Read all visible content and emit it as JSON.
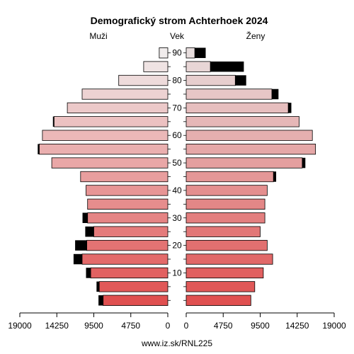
{
  "footer": "www.iz.sk/RNL225",
  "chart_data": {
    "type": "bar",
    "subtype": "population-pyramid",
    "title": "Demografický strom Achterhoek 2024",
    "left_label": "Muži",
    "center_label": "Vek",
    "right_label": "Ženy",
    "xlim": [
      0,
      19000
    ],
    "x_ticks": [
      {
        "value": 19000,
        "label": "19000"
      },
      {
        "value": 14250,
        "label": "14250"
      },
      {
        "value": 9500,
        "label": "9500"
      },
      {
        "value": 4750,
        "label": "4750"
      },
      {
        "value": 0,
        "label": "0"
      }
    ],
    "age_ticks": [
      {
        "age": 10,
        "label": "10"
      },
      {
        "age": 20,
        "label": "20"
      },
      {
        "age": 30,
        "label": "30"
      },
      {
        "age": 40,
        "label": "40"
      },
      {
        "age": 50,
        "label": "50"
      },
      {
        "age": 60,
        "label": "60"
      },
      {
        "age": 70,
        "label": "70"
      },
      {
        "age": 80,
        "label": "80"
      },
      {
        "age": 90,
        "label": "90"
      }
    ],
    "age_groups": [
      "0-4",
      "5-9",
      "10-14",
      "15-19",
      "20-24",
      "25-29",
      "30-34",
      "35-39",
      "40-44",
      "45-49",
      "50-54",
      "55-59",
      "60-64",
      "65-69",
      "70-74",
      "75-79",
      "80-84",
      "85-89",
      "90+"
    ],
    "men": {
      "base": [
        8300,
        8800,
        9900,
        11000,
        10400,
        9500,
        10300,
        10300,
        10500,
        11200,
        14900,
        16500,
        16100,
        14600,
        12900,
        11000,
        6300,
        3100,
        1100
      ],
      "excess": [
        600,
        350,
        600,
        1100,
        1500,
        1100,
        650,
        0,
        0,
        0,
        0,
        200,
        0,
        150,
        0,
        0,
        0,
        0,
        0
      ]
    },
    "women": {
      "base": [
        8300,
        8800,
        9900,
        11100,
        10400,
        9500,
        10100,
        10100,
        10400,
        11200,
        14900,
        16600,
        16200,
        14500,
        13100,
        11000,
        6300,
        3100,
        1100
      ],
      "excess": [
        0,
        0,
        0,
        0,
        0,
        0,
        0,
        0,
        0,
        350,
        400,
        0,
        0,
        0,
        400,
        850,
        1400,
        4300,
        1400
      ]
    },
    "legend": "none",
    "grid": false
  }
}
